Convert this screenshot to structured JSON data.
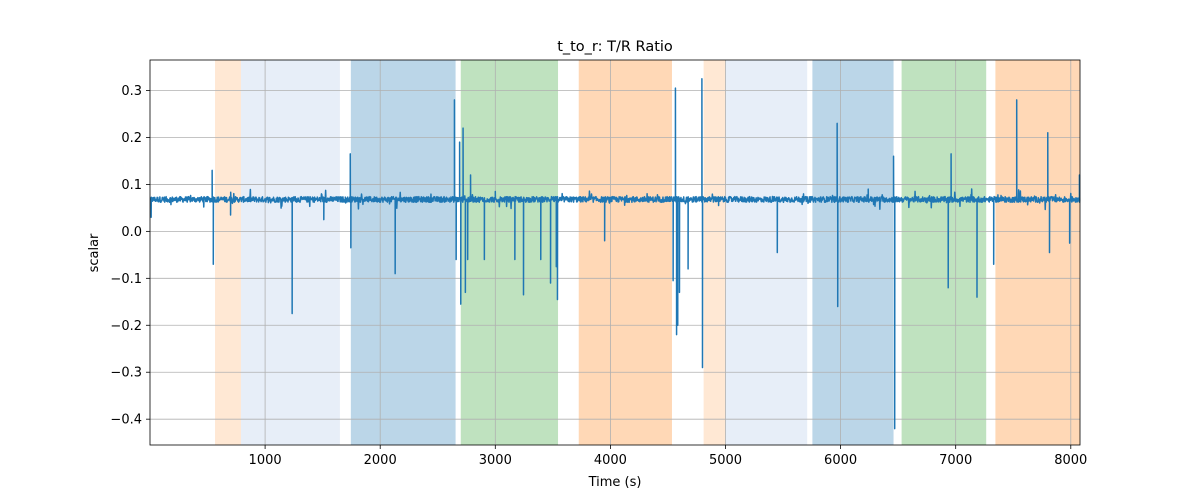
{
  "chart_data": {
    "type": "line",
    "title": "t_to_r: T/R Ratio",
    "xlabel": "Time (s)",
    "ylabel": "scalar",
    "xlim": [
      0,
      8080
    ],
    "ylim": [
      -0.455,
      0.365
    ],
    "grid": true,
    "x_ticks": [
      {
        "value": 1000,
        "label": "1000"
      },
      {
        "value": 2000,
        "label": "2000"
      },
      {
        "value": 3000,
        "label": "3000"
      },
      {
        "value": 4000,
        "label": "4000"
      },
      {
        "value": 5000,
        "label": "5000"
      },
      {
        "value": 6000,
        "label": "6000"
      },
      {
        "value": 7000,
        "label": "7000"
      },
      {
        "value": 8000,
        "label": "8000"
      }
    ],
    "y_ticks": [
      {
        "value": 0.3,
        "label": "0.3"
      },
      {
        "value": 0.2,
        "label": "0.2"
      },
      {
        "value": 0.1,
        "label": "0.1"
      },
      {
        "value": 0.0,
        "label": "0.0"
      },
      {
        "value": -0.1,
        "label": "−0.1"
      },
      {
        "value": -0.2,
        "label": "−0.2"
      },
      {
        "value": -0.3,
        "label": "−0.3"
      },
      {
        "value": -0.4,
        "label": "−0.4"
      }
    ],
    "shaded_regions": [
      {
        "start": 565,
        "end": 790,
        "color": "#ff7f0e",
        "opacity": 0.18
      },
      {
        "start": 790,
        "end": 1650,
        "color": "#aec7e8",
        "opacity": 0.3
      },
      {
        "start": 1745,
        "end": 2655,
        "color": "#1f77b4",
        "opacity": 0.3
      },
      {
        "start": 2700,
        "end": 3545,
        "color": "#2ca02c",
        "opacity": 0.3
      },
      {
        "start": 3725,
        "end": 4535,
        "color": "#ff7f0e",
        "opacity": 0.3
      },
      {
        "start": 4810,
        "end": 5000,
        "color": "#ff7f0e",
        "opacity": 0.18
      },
      {
        "start": 5000,
        "end": 5710,
        "color": "#aec7e8",
        "opacity": 0.3
      },
      {
        "start": 5755,
        "end": 6460,
        "color": "#1f77b4",
        "opacity": 0.3
      },
      {
        "start": 6530,
        "end": 7265,
        "color": "#2ca02c",
        "opacity": 0.3
      },
      {
        "start": 7345,
        "end": 8080,
        "color": "#ff7f0e",
        "opacity": 0.3
      }
    ],
    "series": [
      {
        "name": "t_to_r",
        "color": "#1f77b4",
        "baseline": 0.068,
        "noise": 0.006,
        "spikes": [
          {
            "x": 10,
            "y": 0.03
          },
          {
            "x": 540,
            "y": 0.13
          },
          {
            "x": 550,
            "y": -0.07
          },
          {
            "x": 700,
            "y": 0.035
          },
          {
            "x": 1235,
            "y": -0.175
          },
          {
            "x": 1510,
            "y": 0.025
          },
          {
            "x": 1740,
            "y": 0.165
          },
          {
            "x": 1745,
            "y": -0.035
          },
          {
            "x": 2130,
            "y": -0.09
          },
          {
            "x": 2645,
            "y": 0.28
          },
          {
            "x": 2660,
            "y": -0.06
          },
          {
            "x": 2690,
            "y": 0.19
          },
          {
            "x": 2700,
            "y": -0.155
          },
          {
            "x": 2720,
            "y": 0.22
          },
          {
            "x": 2740,
            "y": -0.13
          },
          {
            "x": 2760,
            "y": -0.06
          },
          {
            "x": 2785,
            "y": 0.12
          },
          {
            "x": 2905,
            "y": -0.06
          },
          {
            "x": 3000,
            "y": 0.085
          },
          {
            "x": 3170,
            "y": -0.06
          },
          {
            "x": 3245,
            "y": -0.135
          },
          {
            "x": 3395,
            "y": -0.06
          },
          {
            "x": 3480,
            "y": -0.11
          },
          {
            "x": 3530,
            "y": -0.075
          },
          {
            "x": 3540,
            "y": -0.145
          },
          {
            "x": 3950,
            "y": -0.02
          },
          {
            "x": 4545,
            "y": -0.105
          },
          {
            "x": 4565,
            "y": 0.305
          },
          {
            "x": 4575,
            "y": -0.22
          },
          {
            "x": 4585,
            "y": -0.2
          },
          {
            "x": 4600,
            "y": -0.13
          },
          {
            "x": 4675,
            "y": -0.08
          },
          {
            "x": 4795,
            "y": 0.325
          },
          {
            "x": 4800,
            "y": -0.29
          },
          {
            "x": 4940,
            "y": 0.055
          },
          {
            "x": 5450,
            "y": -0.045
          },
          {
            "x": 5970,
            "y": 0.23
          },
          {
            "x": 5975,
            "y": -0.16
          },
          {
            "x": 6240,
            "y": 0.09
          },
          {
            "x": 6460,
            "y": 0.16
          },
          {
            "x": 6470,
            "y": -0.42
          },
          {
            "x": 6935,
            "y": -0.12
          },
          {
            "x": 6960,
            "y": 0.165
          },
          {
            "x": 7185,
            "y": -0.14
          },
          {
            "x": 7330,
            "y": -0.07
          },
          {
            "x": 7530,
            "y": 0.28
          },
          {
            "x": 7800,
            "y": 0.21
          },
          {
            "x": 7815,
            "y": -0.045
          },
          {
            "x": 7990,
            "y": -0.025
          },
          {
            "x": 8075,
            "y": 0.12
          }
        ]
      }
    ]
  }
}
